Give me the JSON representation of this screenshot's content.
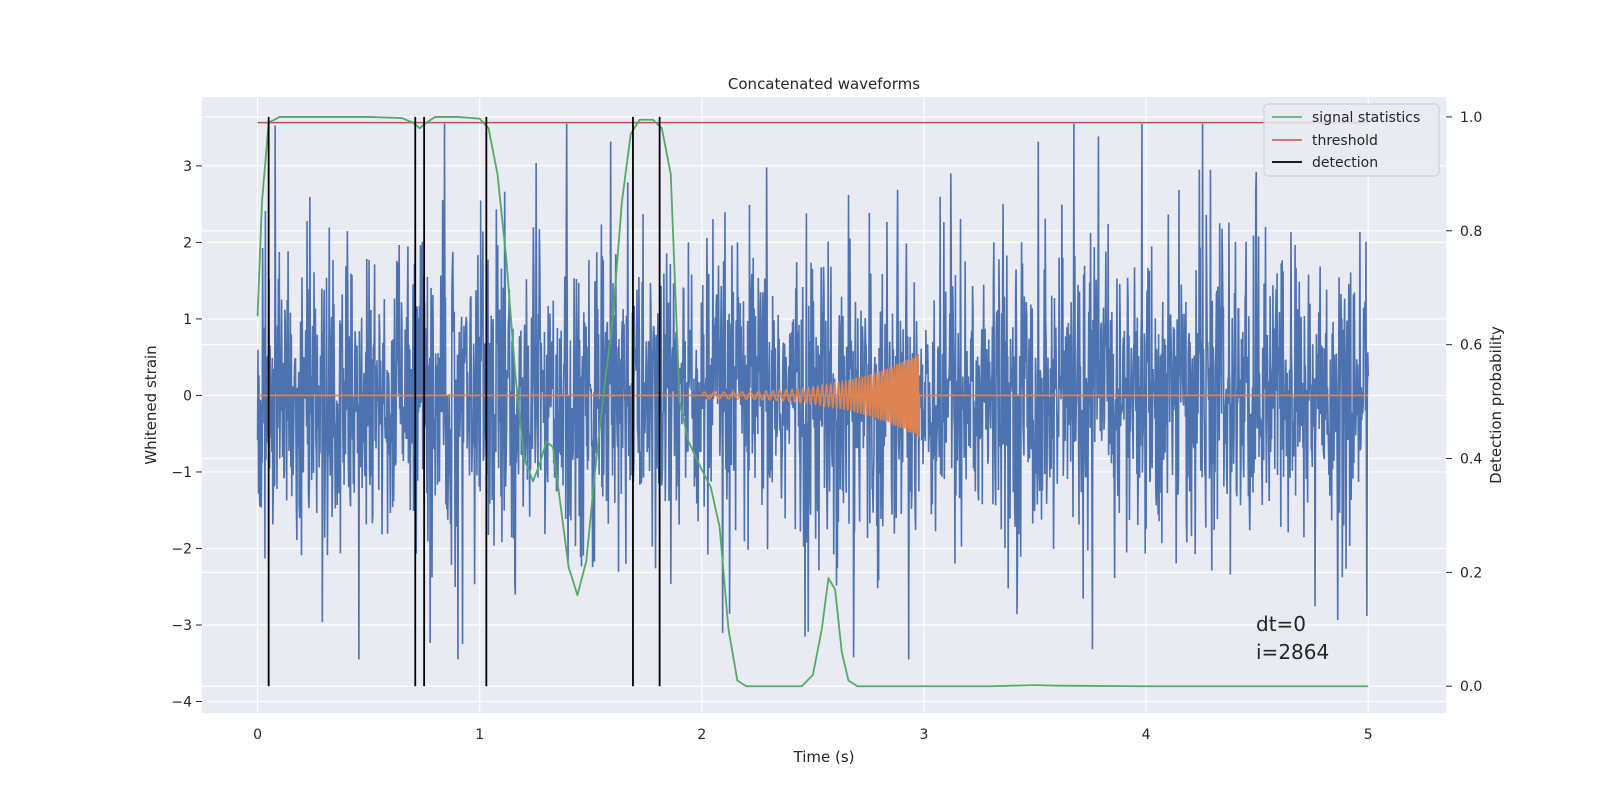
{
  "chart_data": {
    "type": "line",
    "title": "Concatenated waveforms",
    "xlabel": "Time (s)",
    "ylabel": "Whitened strain",
    "y2label": "Detection probability",
    "xlim": [
      -0.25,
      5.35
    ],
    "ylim": [
      -4.15,
      3.9
    ],
    "y2lim": [
      -0.047,
      1.035
    ],
    "xticks": [
      0,
      1,
      2,
      3,
      4,
      5
    ],
    "yticks": [
      -4,
      -3,
      -2,
      -1,
      0,
      1,
      2,
      3
    ],
    "y2ticks": [
      0.0,
      0.2,
      0.4,
      0.6,
      0.8,
      1.0
    ],
    "grid": true,
    "legend_position": "top-right",
    "legend": [
      "signal statistics",
      "threshold",
      "detection"
    ],
    "colors": {
      "strain": "#4c72b0",
      "template": "#dd8452",
      "signal_statistics": "#55a868",
      "threshold": "#c44e52",
      "detection": "#000000",
      "plot_background": "#eaeaf2",
      "grid": "#ffffff"
    },
    "series": [
      {
        "name": "",
        "role": "strain",
        "axis": "left",
        "x_range": [
          0,
          5
        ],
        "envelope": "noise",
        "peak_y": [
          3.55,
          -3.45
        ]
      },
      {
        "name": "",
        "role": "template",
        "axis": "left",
        "x_range": [
          2.0,
          2.98
        ],
        "peak_amplitude": 0.55
      },
      {
        "name": "signal statistics",
        "role": "signal_statistics",
        "axis": "right",
        "x": [
          0.0,
          0.02,
          0.05,
          0.1,
          0.3,
          0.5,
          0.65,
          0.7,
          0.73,
          0.76,
          0.8,
          0.9,
          1.0,
          1.04,
          1.08,
          1.12,
          1.16,
          1.2,
          1.24,
          1.27,
          1.3,
          1.33,
          1.36,
          1.4,
          1.44,
          1.48,
          1.52,
          1.56,
          1.6,
          1.64,
          1.68,
          1.72,
          1.78,
          1.82,
          1.86,
          1.9,
          1.94,
          2.0,
          2.04,
          2.08,
          2.12,
          2.16,
          2.2,
          2.3,
          2.45,
          2.5,
          2.54,
          2.57,
          2.6,
          2.63,
          2.66,
          2.7,
          2.8,
          3.0,
          3.3,
          3.5,
          3.6,
          4.0,
          4.5,
          5.0
        ],
        "y": [
          0.65,
          0.85,
          0.99,
          1.0,
          1.0,
          1.0,
          0.998,
          0.99,
          0.98,
          0.99,
          1.0,
          1.0,
          0.997,
          0.98,
          0.9,
          0.75,
          0.55,
          0.4,
          0.36,
          0.39,
          0.43,
          0.42,
          0.33,
          0.21,
          0.16,
          0.22,
          0.38,
          0.52,
          0.65,
          0.85,
          0.97,
          0.995,
          0.995,
          0.98,
          0.9,
          0.5,
          0.43,
          0.38,
          0.35,
          0.28,
          0.1,
          0.01,
          0.0,
          0.0,
          0.0,
          0.02,
          0.1,
          0.19,
          0.17,
          0.06,
          0.01,
          0.0,
          0.0,
          0.0,
          0.0,
          0.002,
          0.001,
          0.0,
          0.0,
          0.0
        ]
      },
      {
        "name": "threshold",
        "role": "threshold",
        "axis": "right",
        "x": [
          0,
          5
        ],
        "y": [
          0.99,
          0.99
        ]
      },
      {
        "name": "detection",
        "role": "detection",
        "axis": "right",
        "type": "vlines",
        "x": [
          0.05,
          0.71,
          0.75,
          1.03,
          1.69,
          1.81
        ],
        "ymin": 0.0,
        "ymax": 1.0
      }
    ],
    "annotations": [
      "dt=0",
      "i=2864"
    ]
  }
}
